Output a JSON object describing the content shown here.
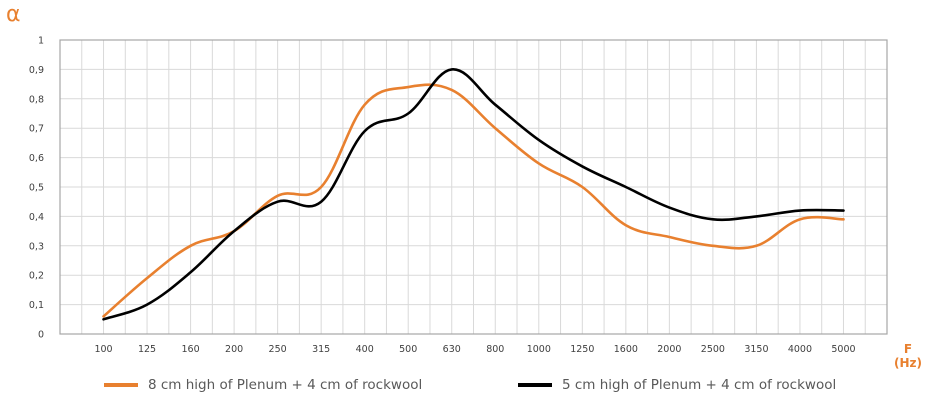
{
  "chart_data": {
    "type": "line",
    "ylabel": "α",
    "xlabel_line1": "F",
    "xlabel_line2": "(Hz)",
    "categories": [
      "100",
      "125",
      "160",
      "200",
      "250",
      "315",
      "400",
      "500",
      "630",
      "800",
      "1000",
      "1250",
      "1600",
      "2000",
      "2500",
      "3150",
      "4000",
      "5000"
    ],
    "y_ticks": [
      "0",
      "0,1",
      "0,2",
      "0,3",
      "0,4",
      "0,5",
      "0,6",
      "0,7",
      "0,8",
      "0,9",
      "1"
    ],
    "ylim": [
      0,
      1
    ],
    "grid": true,
    "legend_position": "bottom",
    "series": [
      {
        "name": "8 cm high of Plenum + 4 cm of rockwool",
        "color": "#e8802f",
        "x": [
          100,
          125,
          160,
          200,
          250,
          315,
          400,
          500,
          630,
          800,
          1000,
          1250,
          1600,
          2000,
          2500,
          3150,
          4000,
          5000
        ],
        "values": [
          0.06,
          0.19,
          0.3,
          0.35,
          0.47,
          0.5,
          0.78,
          0.84,
          0.83,
          0.7,
          0.58,
          0.5,
          0.37,
          0.33,
          0.3,
          0.3,
          0.39,
          0.39
        ]
      },
      {
        "name": "5 cm high of Plenum + 4 cm of rockwool",
        "color": "#000000",
        "x": [
          100,
          125,
          160,
          200,
          250,
          315,
          400,
          500,
          630,
          800,
          1000,
          1250,
          1600,
          2000,
          2500,
          3150,
          4000,
          5000
        ],
        "values": [
          0.05,
          0.1,
          0.21,
          0.35,
          0.45,
          0.45,
          0.69,
          0.75,
          0.9,
          0.78,
          0.66,
          0.57,
          0.5,
          0.43,
          0.39,
          0.4,
          0.42,
          0.42
        ]
      }
    ]
  }
}
